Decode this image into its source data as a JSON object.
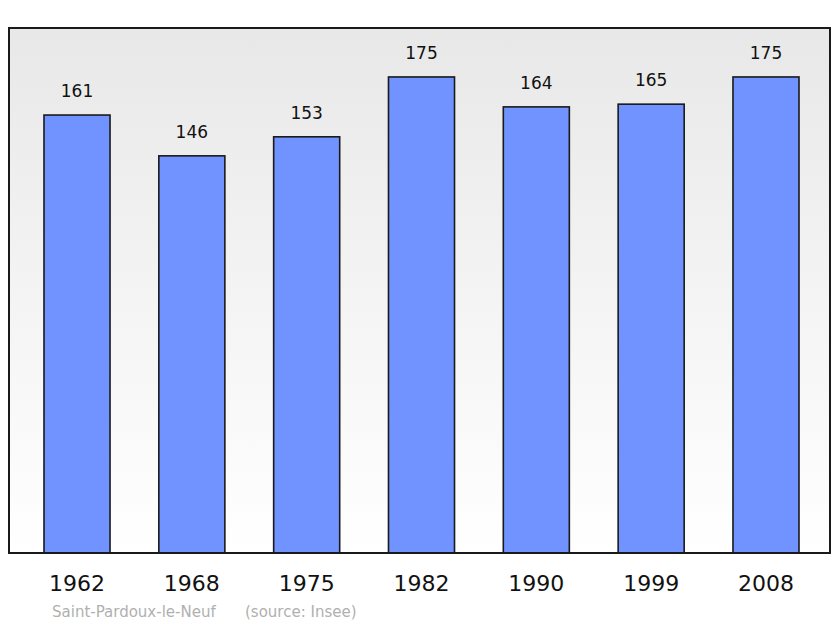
{
  "chart_data": {
    "type": "bar",
    "categories": [
      "1962",
      "1968",
      "1975",
      "1982",
      "1990",
      "1999",
      "2008"
    ],
    "values": [
      161,
      146,
      153,
      175,
      164,
      165,
      175
    ],
    "color": "#7093ff",
    "ylim": [
      0,
      193
    ],
    "data_labels": true,
    "tick_labels": "x",
    "grid": false,
    "annotations": [
      "Saint-Pardoux-le-Neuf",
      "(source: Insee)"
    ]
  }
}
